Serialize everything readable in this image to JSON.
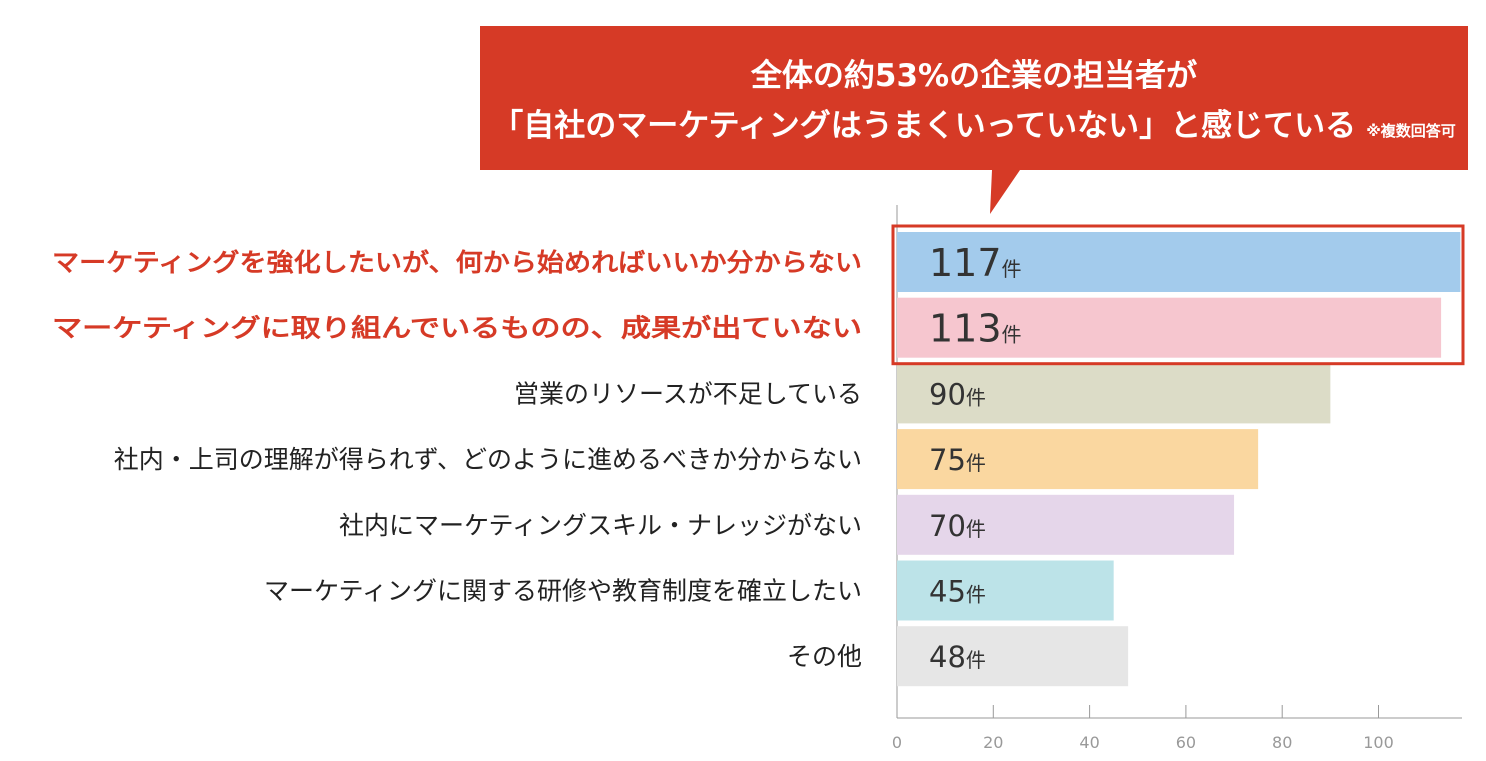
{
  "header": {
    "headline_line1": "全体の約53%の企業の担当者が",
    "headline_line2": "「自社のマーケティングはうまくいっていない」と感じている",
    "note": "※複数回答可",
    "bg_color": "#d63a26"
  },
  "chart_data": {
    "type": "bar",
    "orientation": "horizontal",
    "categories": [
      "マーケティングを強化したいが、何から始めればいいか分からない",
      "マーケティングに取り組んでいるものの、成果が出ていない",
      "営業のリソースが不足している",
      "社内・上司の理解が得られず、どのように進めるべきか分からない",
      "社内にマーケティングスキル・ナレッジがない",
      "マーケティングに関する研修や教育制度を確立したい",
      "その他"
    ],
    "values": [
      117,
      113,
      90,
      75,
      70,
      45,
      48
    ],
    "value_unit": "件",
    "bar_colors": [
      "#a3cbec",
      "#f6c6cf",
      "#dcdcc7",
      "#fad7a0",
      "#e5d6ea",
      "#bce3e8",
      "#e6e6e6"
    ],
    "highlighted_categories": [
      0,
      1
    ],
    "highlight_color": "#d63a26",
    "xlim": [
      0,
      117
    ],
    "x_ticks": [
      0,
      20,
      40,
      60,
      80,
      100
    ],
    "grid": false
  }
}
